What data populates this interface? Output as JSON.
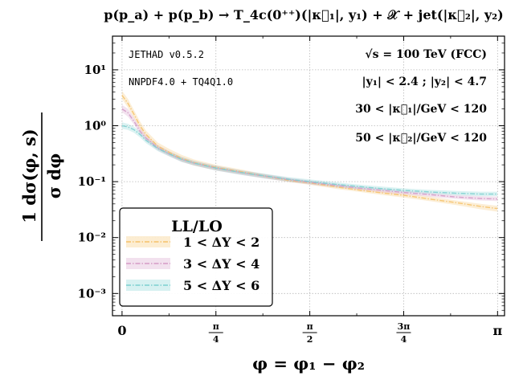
{
  "chart_data": {
    "type": "line",
    "title": "p(p_a) + p(p_b) → T_4c(0⁺⁺)(|κ⃗₁|, y₁) + 𝒳 + jet(|κ⃗₂|, y₂)",
    "xlabel": "φ = φ₁ − φ₂",
    "ylabel_numerator": "1 dσ(φ, s)",
    "ylabel_denominator": "σ   dφ",
    "x_ticks": [
      "0",
      "π/4",
      "π/2",
      "3π/4",
      "π"
    ],
    "x_tick_values": [
      0,
      0.785398,
      1.570796,
      2.356194,
      3.141593
    ],
    "y_ticks": [
      {
        "value": 0.001,
        "label": "10⁻³"
      },
      {
        "value": 0.01,
        "label": "10⁻²"
      },
      {
        "value": 0.1,
        "label": "10⁻¹"
      },
      {
        "value": 1,
        "label": "10⁰"
      },
      {
        "value": 10,
        "label": "10¹"
      }
    ],
    "xlim": [
      -0.08,
      3.2
    ],
    "ylim": [
      0.0004,
      40
    ],
    "y_scale": "log",
    "grid": true,
    "annotations_left": [
      "JETHAD v0.5.2",
      "NNPDF4.0 + TQ4Q1.0"
    ],
    "annotations_right": [
      "√s = 100 TeV (FCC)",
      "|y₁| < 2.4 ;   |y₂| < 4.7",
      "30 < |κ⃗₁|/GeV < 120",
      "50 < |κ⃗₂|/GeV < 120"
    ],
    "legend_title": "LL/LO",
    "legend_position": "lower-left",
    "series": [
      {
        "name": "1 < ΔY < 2",
        "color": "#f5c26a",
        "x": [
          0,
          0.05,
          0.1,
          0.15,
          0.2,
          0.3,
          0.4,
          0.5,
          0.6,
          0.785,
          1.0,
          1.2,
          1.4,
          1.571,
          1.8,
          2.0,
          2.2,
          2.356,
          2.6,
          2.8,
          3.0,
          3.14
        ],
        "y_center": [
          3.5,
          2.5,
          1.6,
          1.0,
          0.7,
          0.43,
          0.33,
          0.26,
          0.22,
          0.18,
          0.15,
          0.125,
          0.105,
          0.095,
          0.08,
          0.07,
          0.062,
          0.057,
          0.048,
          0.042,
          0.036,
          0.033
        ],
        "y_band_low": [
          3.0,
          2.1,
          1.35,
          0.85,
          0.6,
          0.38,
          0.29,
          0.23,
          0.195,
          0.16,
          0.135,
          0.115,
          0.098,
          0.088,
          0.074,
          0.065,
          0.057,
          0.052,
          0.044,
          0.038,
          0.032,
          0.029
        ],
        "y_band_high": [
          4.2,
          3.0,
          1.9,
          1.2,
          0.82,
          0.5,
          0.38,
          0.3,
          0.25,
          0.2,
          0.165,
          0.135,
          0.113,
          0.102,
          0.087,
          0.076,
          0.067,
          0.062,
          0.053,
          0.046,
          0.04,
          0.037
        ]
      },
      {
        "name": "3 < ΔY < 4",
        "color": "#d49ac6",
        "x": [
          0,
          0.05,
          0.1,
          0.15,
          0.2,
          0.3,
          0.4,
          0.5,
          0.6,
          0.785,
          1.0,
          1.2,
          1.4,
          1.571,
          1.8,
          2.0,
          2.2,
          2.356,
          2.6,
          2.8,
          3.0,
          3.14
        ],
        "y_center": [
          2.0,
          1.7,
          1.2,
          0.8,
          0.6,
          0.4,
          0.31,
          0.25,
          0.215,
          0.175,
          0.145,
          0.125,
          0.108,
          0.097,
          0.085,
          0.076,
          0.069,
          0.064,
          0.058,
          0.053,
          0.05,
          0.049
        ],
        "y_band_low": [
          1.75,
          1.45,
          1.05,
          0.7,
          0.53,
          0.36,
          0.28,
          0.225,
          0.195,
          0.158,
          0.132,
          0.113,
          0.099,
          0.089,
          0.078,
          0.07,
          0.063,
          0.059,
          0.053,
          0.049,
          0.046,
          0.045
        ],
        "y_band_high": [
          2.35,
          2.0,
          1.4,
          0.93,
          0.68,
          0.45,
          0.345,
          0.275,
          0.235,
          0.192,
          0.158,
          0.136,
          0.117,
          0.105,
          0.092,
          0.082,
          0.075,
          0.069,
          0.063,
          0.058,
          0.055,
          0.054
        ]
      },
      {
        "name": "5 < ΔY < 6",
        "color": "#7ccfcf",
        "x": [
          0,
          0.05,
          0.1,
          0.15,
          0.2,
          0.3,
          0.4,
          0.5,
          0.6,
          0.785,
          1.0,
          1.2,
          1.4,
          1.571,
          1.8,
          2.0,
          2.2,
          2.356,
          2.6,
          2.8,
          3.0,
          3.14
        ],
        "y_center": [
          1.0,
          0.95,
          0.85,
          0.7,
          0.55,
          0.39,
          0.31,
          0.25,
          0.215,
          0.175,
          0.145,
          0.126,
          0.11,
          0.1,
          0.089,
          0.081,
          0.074,
          0.07,
          0.065,
          0.062,
          0.06,
          0.06
        ],
        "y_band_low": [
          0.88,
          0.84,
          0.75,
          0.62,
          0.49,
          0.35,
          0.28,
          0.225,
          0.195,
          0.158,
          0.132,
          0.114,
          0.1,
          0.091,
          0.081,
          0.074,
          0.068,
          0.064,
          0.06,
          0.057,
          0.055,
          0.055
        ],
        "y_band_high": [
          1.15,
          1.08,
          0.96,
          0.79,
          0.62,
          0.43,
          0.34,
          0.275,
          0.235,
          0.192,
          0.158,
          0.138,
          0.12,
          0.11,
          0.097,
          0.088,
          0.081,
          0.076,
          0.071,
          0.068,
          0.066,
          0.066
        ]
      }
    ]
  }
}
